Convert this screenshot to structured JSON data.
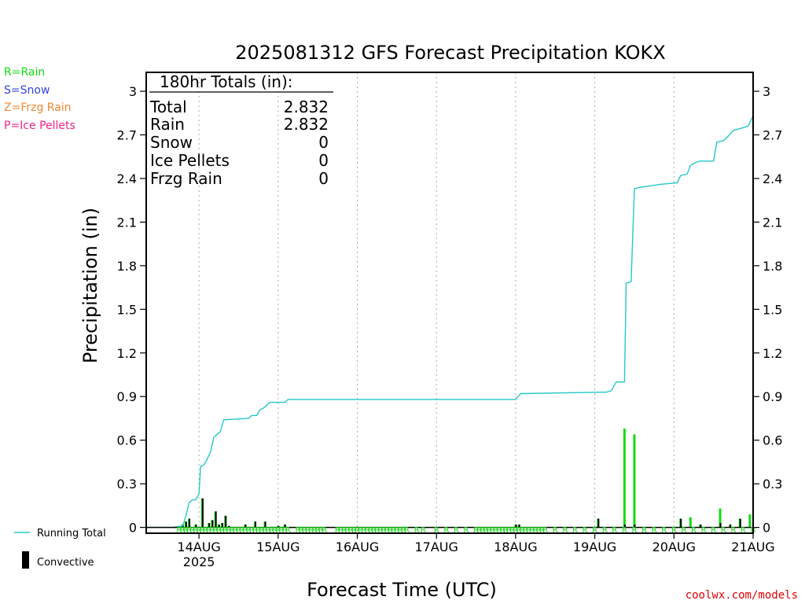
{
  "chart_data": {
    "type": "bar",
    "title": "2025081312 GFS Forecast Precipitation KOKX",
    "xlabel": "Forecast Time (UTC)",
    "ylabel": "Precipitation (in)",
    "ylim": [
      -0.04,
      3.13
    ],
    "xlim": [
      -4,
      180
    ],
    "grid": "vertical dotted lines at day boundaries",
    "legend_placement": "left margin",
    "x_unit": "forecast hours from 2025-08-13 12 UTC",
    "yticks": [
      "0",
      "0.3",
      "0.6",
      "0.9",
      "1.2",
      "1.5",
      "1.8",
      "2.1",
      "2.4",
      "2.7",
      "3"
    ],
    "xticks": [
      {
        "label": "14AUG",
        "sub": "2025",
        "x": 12
      },
      {
        "label": "15AUG",
        "sub": "",
        "x": 36
      },
      {
        "label": "16AUG",
        "sub": "",
        "x": 60
      },
      {
        "label": "17AUG",
        "sub": "",
        "x": 84
      },
      {
        "label": "18AUG",
        "sub": "",
        "x": 108
      },
      {
        "label": "19AUG",
        "sub": "",
        "x": 132
      },
      {
        "label": "20AUG",
        "sub": "",
        "x": 156
      },
      {
        "label": "21AUG",
        "sub": "",
        "x": 180
      }
    ],
    "series": [
      {
        "name": "Running Total",
        "color": "#27c8c8",
        "points": [
          [
            -4,
            0
          ],
          [
            4,
            0
          ],
          [
            7,
            0.01
          ],
          [
            7.5,
            0.04
          ],
          [
            8.5,
            0.12
          ],
          [
            9,
            0.17
          ],
          [
            10,
            0.19
          ],
          [
            11,
            0.19
          ],
          [
            12,
            0.23
          ],
          [
            12.5,
            0.42
          ],
          [
            13.5,
            0.43
          ],
          [
            14.5,
            0.47
          ],
          [
            15.5,
            0.52
          ],
          [
            16.5,
            0.62
          ],
          [
            17.5,
            0.64
          ],
          [
            18.5,
            0.66
          ],
          [
            19.5,
            0.74
          ],
          [
            27,
            0.75
          ],
          [
            28,
            0.77
          ],
          [
            29.5,
            0.77
          ],
          [
            30.5,
            0.81
          ],
          [
            31.5,
            0.82
          ],
          [
            33.5,
            0.86
          ],
          [
            38,
            0.86
          ],
          [
            39,
            0.88
          ],
          [
            108,
            0.88
          ],
          [
            109.5,
            0.92
          ],
          [
            134,
            0.93
          ],
          [
            135.5,
            0.93
          ],
          [
            137,
            0.94
          ],
          [
            138.5,
            1.0
          ],
          [
            141,
            1.0
          ],
          [
            141.5,
            1.68
          ],
          [
            143,
            1.69
          ],
          [
            144,
            2.33
          ],
          [
            146,
            2.34
          ],
          [
            149,
            2.35
          ],
          [
            152,
            2.36
          ],
          [
            157,
            2.37
          ],
          [
            158,
            2.42
          ],
          [
            160,
            2.43
          ],
          [
            161,
            2.49
          ],
          [
            162.5,
            2.51
          ],
          [
            164,
            2.52
          ],
          [
            168,
            2.52
          ],
          [
            169,
            2.65
          ],
          [
            171,
            2.66
          ],
          [
            172,
            2.68
          ],
          [
            174,
            2.73
          ],
          [
            178.5,
            2.76
          ],
          [
            180,
            2.832
          ]
        ]
      },
      {
        "name": "Rain",
        "color": "#11dd11",
        "bars": [
          [
            7,
            0.02
          ],
          [
            8,
            0.04
          ],
          [
            9,
            0.06
          ],
          [
            11,
            0.02
          ],
          [
            13,
            0.2
          ],
          [
            15,
            0.03
          ],
          [
            16,
            0.05
          ],
          [
            17,
            0.11
          ],
          [
            18,
            0.02
          ],
          [
            19,
            0.03
          ],
          [
            20,
            0.08
          ],
          [
            21,
            0.01
          ],
          [
            26,
            0.02
          ],
          [
            29,
            0.04
          ],
          [
            32,
            0.04
          ],
          [
            36,
            0.01
          ],
          [
            38,
            0.02
          ],
          [
            108,
            0.02
          ],
          [
            109,
            0.02
          ],
          [
            133,
            0.06
          ],
          [
            141,
            0.68
          ],
          [
            144,
            0.64
          ],
          [
            158,
            0.06
          ],
          [
            161,
            0.07
          ],
          [
            164,
            0.02
          ],
          [
            170,
            0.13
          ],
          [
            173,
            0.02
          ],
          [
            176,
            0.06
          ],
          [
            179,
            0.09
          ]
        ]
      },
      {
        "name": "Convective",
        "color": "#000000",
        "bars": [
          [
            7,
            0.02
          ],
          [
            8,
            0.04
          ],
          [
            9,
            0.06
          ],
          [
            11,
            0.02
          ],
          [
            13,
            0.2
          ],
          [
            15,
            0.03
          ],
          [
            16,
            0.05
          ],
          [
            17,
            0.11
          ],
          [
            18,
            0.02
          ],
          [
            19,
            0.03
          ],
          [
            20,
            0.08
          ],
          [
            21,
            0.01
          ],
          [
            26,
            0.02
          ],
          [
            29,
            0.04
          ],
          [
            32,
            0.04
          ],
          [
            36,
            0.01
          ],
          [
            38,
            0.02
          ],
          [
            108,
            0.02
          ],
          [
            109,
            0.02
          ],
          [
            133,
            0.06
          ],
          [
            141,
            0.02
          ],
          [
            144,
            0.02
          ],
          [
            158,
            0.06
          ],
          [
            164,
            0.02
          ],
          [
            170,
            0.03
          ],
          [
            173,
            0.02
          ],
          [
            176,
            0.06
          ]
        ]
      }
    ],
    "ptype_markers": {
      "letter": "R",
      "color": "#11dd11",
      "hours": [
        6,
        7,
        8,
        9,
        10,
        11,
        12,
        13,
        14,
        15,
        16,
        17,
        18,
        19,
        20,
        21,
        22,
        23,
        24,
        25,
        26,
        27,
        28,
        29,
        30,
        31,
        32,
        33,
        34,
        35,
        36,
        37,
        38,
        39,
        42,
        43,
        44,
        45,
        46,
        47,
        48,
        49,
        50,
        54,
        55,
        56,
        57,
        58,
        59,
        60,
        61,
        62,
        63,
        64,
        65,
        66,
        67,
        68,
        69,
        70,
        71,
        72,
        73,
        74,
        75,
        78,
        80,
        84,
        87,
        90,
        93,
        96,
        97,
        98,
        99,
        100,
        101,
        102,
        103,
        104,
        105,
        106,
        107,
        108,
        109,
        110,
        111,
        112,
        113,
        114,
        115,
        116,
        117,
        120,
        123,
        126,
        129,
        132,
        135,
        138,
        141,
        144,
        147,
        150,
        153,
        156,
        159,
        162,
        165,
        168,
        171,
        174,
        177,
        180
      ]
    }
  },
  "totals_box": {
    "header": "180hr Totals (in):",
    "rows": [
      {
        "label": "Total",
        "value": "2.832"
      },
      {
        "label": "Rain",
        "value": "2.832"
      },
      {
        "label": "Snow",
        "value": "0"
      },
      {
        "label": "Ice Pellets",
        "value": "0"
      },
      {
        "label": "Frzg Rain",
        "value": "0"
      }
    ]
  },
  "ptype_legend": [
    {
      "text": "R=Rain",
      "color": "#11dd11"
    },
    {
      "text": "S=Snow",
      "color": "#3344dd"
    },
    {
      "text": "Z=Frzg Rain",
      "color": "#ee8833"
    },
    {
      "text": "P=Ice Pellets",
      "color": "#ee2288"
    }
  ],
  "series_legend": [
    {
      "text": "Running Total",
      "color": "#27c8c8"
    },
    {
      "text": "Convective",
      "color": "#000000"
    }
  ],
  "credit": "coolwx.com/models",
  "colors": {
    "grid": "#aaaaaa",
    "axis": "#000000",
    "credit": "#dd0000"
  }
}
